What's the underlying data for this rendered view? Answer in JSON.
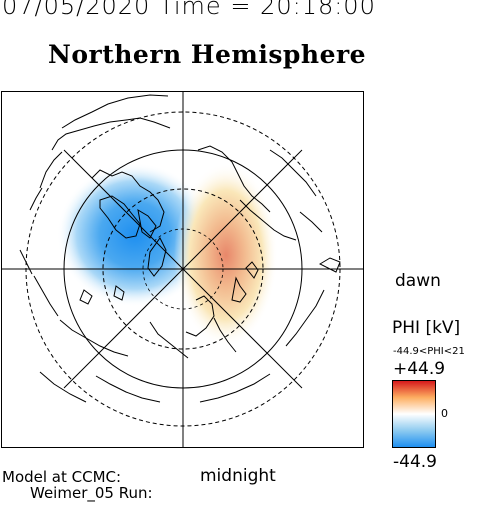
{
  "header": {
    "datetime": "07/05/2020 Time = 20:18:00",
    "title": "Northern Hemisphere"
  },
  "map": {
    "projection": "polar-north",
    "potential_pattern": {
      "negative_cell": "dusk / left side, blue",
      "positive_cell": "dawn / right side, red-orange"
    }
  },
  "labels": {
    "dawn": "dawn",
    "midnight": "midnight"
  },
  "legend": {
    "title": "PHI [kV]",
    "range": "-44.9<PHI<21",
    "max": "+44.9",
    "zero": "0",
    "min": "-44.9",
    "colors": {
      "positive_high": "#d7191c",
      "positive_mid": "#fdae61",
      "neutral": "#ffffff",
      "negative_mid": "#8ecbf0",
      "negative_high": "#1e8ff0"
    }
  },
  "model": {
    "line1": "Model at CCMC:",
    "line2": "Weimer_05 Run:"
  }
}
